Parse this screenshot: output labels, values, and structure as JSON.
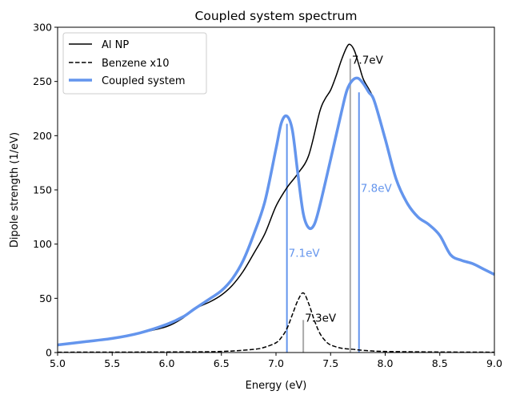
{
  "chart_data": {
    "type": "line",
    "title": "Coupled system spectrum",
    "xlabel": "Energy (eV)",
    "ylabel": "Dipole strength (1/eV)",
    "xlim": [
      5.0,
      9.0
    ],
    "ylim": [
      0,
      300
    ],
    "xticks": [
      "5.0",
      "5.5",
      "6.0",
      "6.5",
      "7.0",
      "7.5",
      "8.0",
      "8.5",
      "9.0"
    ],
    "yticks": [
      "0",
      "50",
      "100",
      "150",
      "200",
      "250",
      "300"
    ],
    "grid": false,
    "legend": "top-left",
    "series": [
      {
        "name": "Al NP",
        "color": "#000000",
        "style": "solid",
        "x": [
          5.0,
          5.25,
          5.5,
          5.75,
          6.0,
          6.15,
          6.25,
          6.4,
          6.5,
          6.6,
          6.7,
          6.8,
          6.9,
          7.0,
          7.1,
          7.2,
          7.3,
          7.4,
          7.45,
          7.5,
          7.55,
          7.6,
          7.65,
          7.68,
          7.72,
          7.76,
          7.8,
          7.85,
          7.9,
          8.0,
          8.1,
          8.2,
          8.3,
          8.4,
          8.5,
          8.6,
          8.7,
          8.8,
          8.9,
          9.0
        ],
        "y": [
          7,
          10,
          13,
          18,
          24,
          32,
          40,
          47,
          53,
          62,
          75,
          92,
          110,
          135,
          152,
          165,
          182,
          222,
          234,
          242,
          255,
          270,
          282,
          284,
          278,
          265,
          252,
          243,
          232,
          197,
          160,
          138,
          125,
          118,
          108,
          90,
          85,
          82,
          77,
          72
        ]
      },
      {
        "name": "Benzene x10",
        "color": "#000000",
        "style": "dashed",
        "x": [
          5.0,
          6.0,
          6.5,
          6.8,
          6.9,
          7.0,
          7.05,
          7.1,
          7.15,
          7.2,
          7.25,
          7.3,
          7.35,
          7.4,
          7.45,
          7.5,
          7.6,
          7.7,
          7.8,
          8.0,
          8.5,
          9.0
        ],
        "y": [
          0.3,
          0.5,
          1,
          3,
          5,
          9,
          14,
          22,
          35,
          48,
          55,
          45,
          30,
          18,
          11,
          7,
          4,
          3,
          2,
          1,
          0.5,
          0.3
        ]
      },
      {
        "name": "Coupled system",
        "color": "#6495ed",
        "style": "solid",
        "x": [
          5.0,
          5.25,
          5.5,
          5.75,
          6.0,
          6.15,
          6.25,
          6.4,
          6.5,
          6.6,
          6.7,
          6.8,
          6.9,
          7.0,
          7.05,
          7.1,
          7.15,
          7.2,
          7.25,
          7.3,
          7.35,
          7.4,
          7.5,
          7.6,
          7.65,
          7.7,
          7.75,
          7.8,
          7.85,
          7.9,
          8.0,
          8.1,
          8.2,
          8.3,
          8.4,
          8.5,
          8.6,
          8.7,
          8.8,
          8.9,
          9.0
        ],
        "y": [
          7,
          10,
          13,
          18,
          26,
          33,
          40,
          50,
          57,
          68,
          85,
          110,
          140,
          188,
          212,
          218,
          205,
          165,
          128,
          115,
          118,
          135,
          178,
          222,
          242,
          251,
          253,
          248,
          240,
          232,
          197,
          160,
          138,
          125,
          118,
          108,
          90,
          85,
          82,
          77,
          72
        ]
      }
    ],
    "sticks": [
      {
        "x": 7.1,
        "height": 211,
        "color": "#6495ed",
        "label": "7.1eV",
        "label_y": 92
      },
      {
        "x": 7.25,
        "height": 30,
        "color": "#aaaaaa",
        "label": "7.3eV",
        "label_y": 32,
        "label_color": "#000000"
      },
      {
        "x": 7.68,
        "height": 271,
        "color": "#aaaaaa",
        "label": "7.7eV",
        "label_y": 270,
        "label_color": "#000000"
      },
      {
        "x": 7.76,
        "height": 240,
        "color": "#6495ed",
        "label": "7.8eV",
        "label_y": 152
      }
    ]
  }
}
